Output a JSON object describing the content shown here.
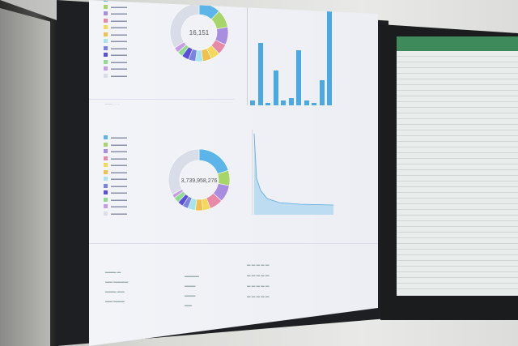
{
  "dashboard": {
    "donut1": {
      "center_value": "16,151"
    },
    "donut2": {
      "center_value": "3,739,958,276"
    },
    "segment_colors": [
      "#5bb5e8",
      "#a8d56a",
      "#a98de0",
      "#e889a8",
      "#f3d85a",
      "#f2c04e",
      "#a6e4ef",
      "#7a84e0",
      "#5a4fd8",
      "#8fdc8f",
      "#c79be6",
      "#d8dde8"
    ],
    "bar_values": [
      2,
      25,
      1,
      14,
      2,
      3,
      22,
      2,
      1,
      10,
      40
    ]
  },
  "colors": {
    "accent": "#4aa9e3",
    "spreadsheet_green": "#3e8a5a"
  }
}
